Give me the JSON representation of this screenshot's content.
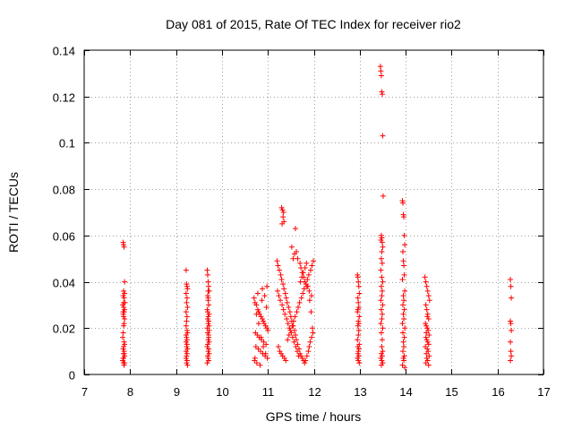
{
  "chart_data": {
    "type": "scatter",
    "title": "Day 081 of 2015, Rate Of TEC Index for receiver rio2",
    "xlabel": "GPS time / hours",
    "ylabel": "ROTI / TECUs",
    "xlim": [
      7,
      17
    ],
    "ylim": [
      0,
      0.14
    ],
    "xticks": [
      7,
      8,
      9,
      10,
      11,
      12,
      13,
      14,
      15,
      16,
      17
    ],
    "yticks": [
      0,
      0.02,
      0.04,
      0.06,
      0.08,
      0.1,
      0.12,
      0.14
    ],
    "xtick_labels": [
      "7",
      "8",
      "9",
      "10",
      "11",
      "12",
      "13",
      "14",
      "15",
      "16",
      "17"
    ],
    "ytick_labels": [
      "0",
      "0.02",
      "0.04",
      "0.06",
      "0.08",
      "0.1",
      "0.12",
      "0.14"
    ],
    "grid": true,
    "marker": "+",
    "color": "#ff0000",
    "series": [
      {
        "name": "rio2",
        "x": [
          7.85,
          7.86,
          7.87,
          7.88,
          7.86,
          7.85,
          7.87,
          7.89,
          7.84,
          7.86,
          7.88,
          7.87,
          7.85,
          7.86,
          7.88,
          7.87,
          7.86,
          7.85,
          7.84,
          7.87,
          7.88,
          7.86,
          7.85,
          7.87,
          7.86,
          7.88,
          7.85,
          7.84,
          7.86,
          7.87,
          7.88,
          7.86,
          7.85,
          7.87,
          7.86,
          7.88,
          9.22,
          9.23,
          9.24,
          9.25,
          9.22,
          9.24,
          9.23,
          9.25,
          9.22,
          9.24,
          9.23,
          9.22,
          9.24,
          9.25,
          9.23,
          9.22,
          9.24,
          9.23,
          9.25,
          9.22,
          9.24,
          9.23,
          9.22,
          9.24,
          9.23,
          9.25,
          9.22,
          9.24,
          9.68,
          9.69,
          9.7,
          9.71,
          9.72,
          9.69,
          9.7,
          9.71,
          9.68,
          9.72,
          9.7,
          9.69,
          9.71,
          9.7,
          9.72,
          9.68,
          9.69,
          9.71,
          9.7,
          9.72,
          9.69,
          9.68,
          9.71,
          9.7,
          9.72,
          9.69,
          9.7,
          9.71,
          9.68,
          9.7,
          9.69,
          9.72,
          9.71,
          9.7,
          10.7,
          10.72,
          10.75,
          10.78,
          10.8,
          10.82,
          10.85,
          10.88,
          10.9,
          10.92,
          10.95,
          10.98,
          11.0,
          10.73,
          10.77,
          10.81,
          10.86,
          10.91,
          10.96,
          10.74,
          10.79,
          10.84,
          10.89,
          10.94,
          10.99,
          10.71,
          10.76,
          10.83,
          10.87,
          10.93,
          10.97,
          10.75,
          10.8,
          10.85,
          10.9,
          10.95,
          10.72,
          10.78,
          10.88,
          10.98,
          11.2,
          11.22,
          11.25,
          11.28,
          11.3,
          11.33,
          11.35,
          11.38,
          11.4,
          11.42,
          11.45,
          11.48,
          11.5,
          11.52,
          11.55,
          11.58,
          11.6,
          11.62,
          11.65,
          11.68,
          11.7,
          11.72,
          11.75,
          11.78,
          11.8,
          11.82,
          11.85,
          11.88,
          11.9,
          11.92,
          11.95,
          11.98,
          11.21,
          11.24,
          11.27,
          11.31,
          11.34,
          11.37,
          11.41,
          11.44,
          11.47,
          11.51,
          11.54,
          11.57,
          11.61,
          11.64,
          11.67,
          11.71,
          11.74,
          11.77,
          11.81,
          11.84,
          11.87,
          11.91,
          11.94,
          11.97,
          11.23,
          11.26,
          11.29,
          11.32,
          11.36,
          11.39,
          11.43,
          11.46,
          11.49,
          11.53,
          11.56,
          11.59,
          11.63,
          11.66,
          11.69,
          11.73,
          11.76,
          11.79,
          11.83,
          11.86,
          11.89,
          11.93,
          11.96,
          11.99,
          11.3,
          11.32,
          11.34,
          11.33,
          11.31,
          11.35,
          11.6,
          11.62,
          11.58,
          11.65,
          11.7,
          11.72,
          11.75,
          11.78,
          11.8,
          11.85,
          11.9,
          11.95,
          11.52,
          11.55,
          12.95,
          12.96,
          12.97,
          12.98,
          12.99,
          12.96,
          12.97,
          12.98,
          12.95,
          12.99,
          12.97,
          12.96,
          12.98,
          12.97,
          12.95,
          12.99,
          12.96,
          12.98,
          12.97,
          12.96,
          12.98,
          12.95,
          12.97,
          12.99,
          12.96,
          12.98,
          13.45,
          13.46,
          13.47,
          13.48,
          13.49,
          13.5,
          13.51,
          13.47,
          13.48,
          13.46,
          13.49,
          13.5,
          13.48,
          13.47,
          13.49,
          13.46,
          13.48,
          13.5,
          13.47,
          13.49,
          13.48,
          13.46,
          13.5,
          13.47,
          13.49,
          13.48,
          13.46,
          13.5,
          13.47,
          13.49,
          13.48,
          13.5,
          13.47,
          13.49,
          13.46,
          13.48,
          13.5,
          13.47,
          13.93,
          13.94,
          13.95,
          13.96,
          13.97,
          13.98,
          13.94,
          13.95,
          13.96,
          13.97,
          13.93,
          13.98,
          13.95,
          13.96,
          13.94,
          13.97,
          13.95,
          13.96,
          13.93,
          13.98,
          13.94,
          13.97,
          13.95,
          13.96,
          13.94,
          13.97,
          13.95,
          13.96,
          13.93,
          13.98,
          14.42,
          14.44,
          14.46,
          14.48,
          14.5,
          14.52,
          14.44,
          14.46,
          14.48,
          14.5,
          14.43,
          14.47,
          14.49,
          14.45,
          14.51,
          14.44,
          14.46,
          14.48,
          14.5,
          14.43,
          14.47,
          14.49,
          14.45,
          14.51,
          14.46,
          14.48,
          14.44,
          14.5,
          14.47,
          14.45,
          16.28,
          16.29,
          16.3,
          16.28,
          16.29,
          16.3,
          16.28,
          16.29,
          16.3,
          16.28
        ],
        "y": [
          0.057,
          0.056,
          0.055,
          0.04,
          0.036,
          0.034,
          0.033,
          0.031,
          0.03,
          0.029,
          0.028,
          0.027,
          0.026,
          0.025,
          0.024,
          0.022,
          0.021,
          0.018,
          0.016,
          0.014,
          0.013,
          0.012,
          0.011,
          0.01,
          0.009,
          0.008,
          0.007,
          0.006,
          0.005,
          0.004,
          0.035,
          0.031,
          0.027,
          0.009,
          0.007,
          0.005,
          0.045,
          0.039,
          0.038,
          0.037,
          0.035,
          0.033,
          0.031,
          0.029,
          0.027,
          0.025,
          0.023,
          0.021,
          0.019,
          0.018,
          0.016,
          0.014,
          0.013,
          0.012,
          0.011,
          0.01,
          0.009,
          0.008,
          0.007,
          0.006,
          0.005,
          0.004,
          0.017,
          0.015,
          0.045,
          0.043,
          0.04,
          0.038,
          0.036,
          0.034,
          0.032,
          0.03,
          0.028,
          0.026,
          0.025,
          0.024,
          0.023,
          0.022,
          0.021,
          0.02,
          0.018,
          0.016,
          0.015,
          0.014,
          0.013,
          0.012,
          0.011,
          0.01,
          0.009,
          0.008,
          0.007,
          0.006,
          0.005,
          0.033,
          0.027,
          0.019,
          0.017,
          0.036,
          0.033,
          0.031,
          0.03,
          0.028,
          0.027,
          0.026,
          0.025,
          0.024,
          0.023,
          0.022,
          0.021,
          0.02,
          0.019,
          0.018,
          0.017,
          0.016,
          0.015,
          0.014,
          0.013,
          0.012,
          0.011,
          0.01,
          0.009,
          0.008,
          0.007,
          0.006,
          0.005,
          0.004,
          0.032,
          0.034,
          0.029,
          0.026,
          0.022,
          0.016,
          0.012,
          0.009,
          0.007,
          0.035,
          0.037,
          0.038,
          0.049,
          0.047,
          0.045,
          0.043,
          0.041,
          0.039,
          0.037,
          0.035,
          0.033,
          0.031,
          0.029,
          0.027,
          0.025,
          0.023,
          0.021,
          0.019,
          0.017,
          0.015,
          0.013,
          0.011,
          0.009,
          0.008,
          0.007,
          0.006,
          0.005,
          0.006,
          0.008,
          0.01,
          0.012,
          0.014,
          0.016,
          0.018,
          0.036,
          0.034,
          0.032,
          0.03,
          0.028,
          0.026,
          0.024,
          0.022,
          0.02,
          0.018,
          0.016,
          0.014,
          0.012,
          0.01,
          0.008,
          0.04,
          0.042,
          0.044,
          0.046,
          0.048,
          0.038,
          0.032,
          0.027,
          0.02,
          0.012,
          0.01,
          0.009,
          0.008,
          0.007,
          0.006,
          0.015,
          0.017,
          0.019,
          0.021,
          0.023,
          0.025,
          0.027,
          0.029,
          0.031,
          0.033,
          0.035,
          0.037,
          0.039,
          0.041,
          0.043,
          0.045,
          0.047,
          0.049,
          0.072,
          0.071,
          0.07,
          0.068,
          0.065,
          0.066,
          0.063,
          0.053,
          0.052,
          0.05,
          0.048,
          0.046,
          0.044,
          0.042,
          0.04,
          0.038,
          0.036,
          0.034,
          0.055,
          0.05,
          0.043,
          0.042,
          0.04,
          0.038,
          0.035,
          0.033,
          0.031,
          0.029,
          0.027,
          0.025,
          0.023,
          0.021,
          0.019,
          0.017,
          0.015,
          0.013,
          0.012,
          0.011,
          0.01,
          0.009,
          0.008,
          0.007,
          0.006,
          0.005,
          0.028,
          0.022,
          0.133,
          0.131,
          0.129,
          0.122,
          0.121,
          0.103,
          0.077,
          0.06,
          0.059,
          0.058,
          0.057,
          0.055,
          0.053,
          0.05,
          0.048,
          0.045,
          0.042,
          0.04,
          0.038,
          0.036,
          0.034,
          0.032,
          0.03,
          0.028,
          0.026,
          0.024,
          0.022,
          0.02,
          0.018,
          0.015,
          0.012,
          0.01,
          0.009,
          0.008,
          0.007,
          0.006,
          0.005,
          0.004,
          0.075,
          0.074,
          0.069,
          0.068,
          0.06,
          0.056,
          0.053,
          0.049,
          0.047,
          0.043,
          0.041,
          0.036,
          0.034,
          0.032,
          0.03,
          0.028,
          0.026,
          0.024,
          0.022,
          0.02,
          0.018,
          0.016,
          0.014,
          0.012,
          0.01,
          0.008,
          0.007,
          0.006,
          0.004,
          0.003,
          0.042,
          0.04,
          0.038,
          0.036,
          0.034,
          0.032,
          0.03,
          0.028,
          0.026,
          0.024,
          0.022,
          0.02,
          0.019,
          0.018,
          0.017,
          0.016,
          0.015,
          0.014,
          0.013,
          0.012,
          0.011,
          0.01,
          0.009,
          0.008,
          0.007,
          0.006,
          0.005,
          0.004,
          0.025,
          0.021,
          0.041,
          0.038,
          0.033,
          0.023,
          0.022,
          0.019,
          0.014,
          0.01,
          0.008,
          0.006
        ]
      }
    ]
  }
}
